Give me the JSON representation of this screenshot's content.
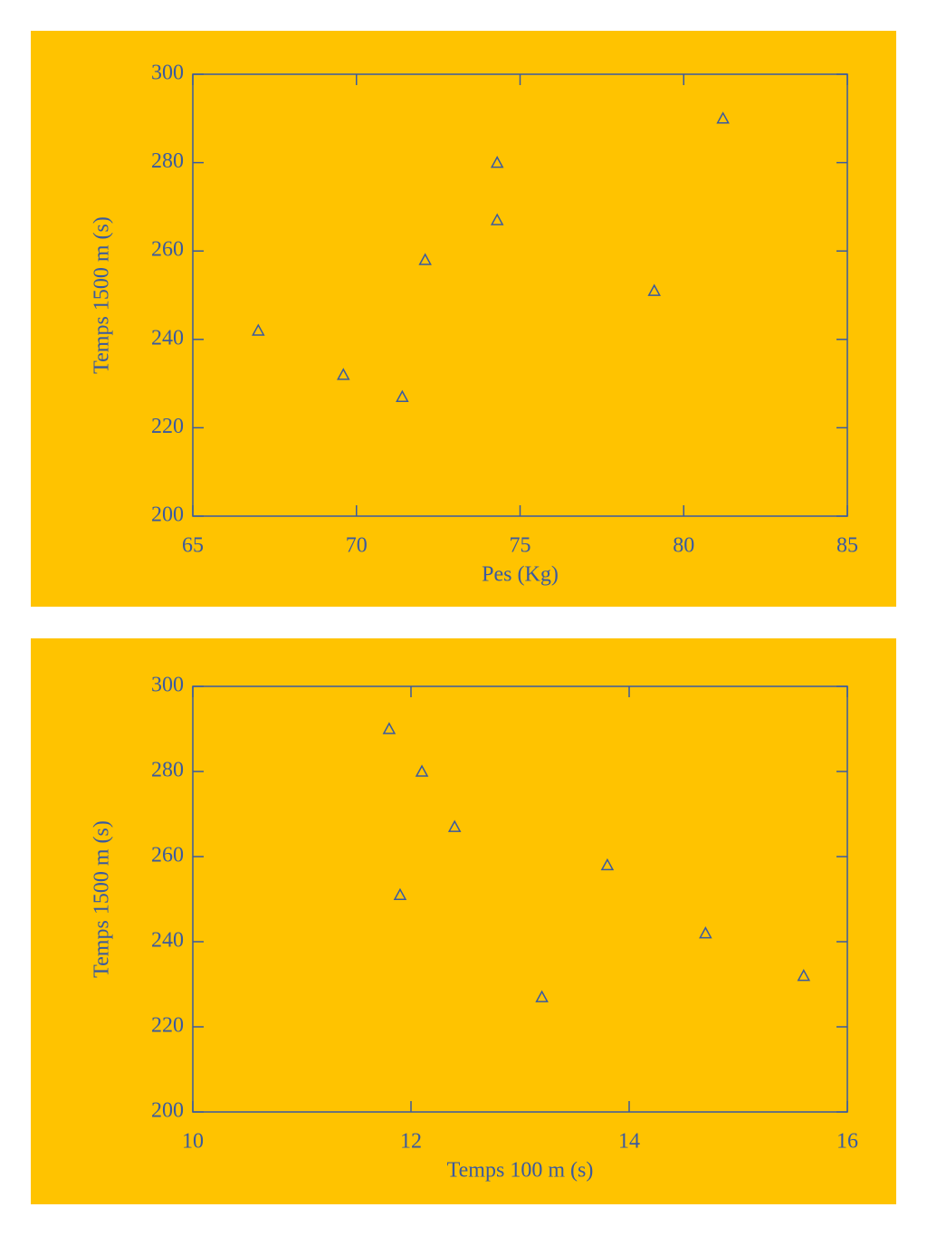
{
  "chart_data": [
    {
      "type": "scatter",
      "x_label": "Pes (Kg)",
      "y_label": "Temps 1500 m (s)",
      "x": [
        67.0,
        69.6,
        71.4,
        72.1,
        74.3,
        74.3,
        79.1,
        81.2
      ],
      "values": [
        242,
        232,
        227,
        258,
        280,
        267,
        251,
        290
      ],
      "xlim": [
        65,
        85
      ],
      "xticks": [
        65,
        70,
        75,
        80,
        85
      ],
      "ylim": [
        200,
        300
      ],
      "yticks": [
        200,
        220,
        240,
        260,
        280,
        300
      ],
      "color": "#3a5aa0",
      "background_color": "#ffc300"
    },
    {
      "type": "scatter",
      "x_label": "Temps 100 m (s)",
      "y_label": "Temps 1500 m (s)",
      "x": [
        14.7,
        15.6,
        13.2,
        13.8,
        12.1,
        12.4,
        11.9,
        11.8
      ],
      "values": [
        242,
        232,
        227,
        258,
        280,
        267,
        251,
        290
      ],
      "xlim": [
        10,
        16
      ],
      "xticks": [
        10,
        12,
        14,
        16
      ],
      "ylim": [
        200,
        300
      ],
      "yticks": [
        200,
        220,
        240,
        260,
        280,
        300
      ],
      "color": "#3a5aa0",
      "background_color": "#ffc300"
    }
  ]
}
